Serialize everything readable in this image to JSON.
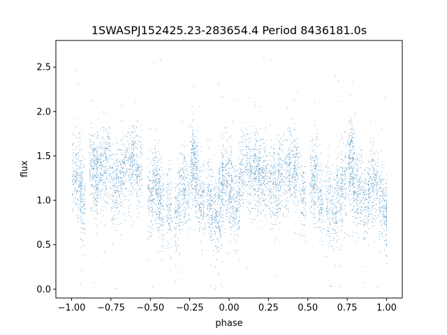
{
  "chart_data": {
    "type": "scatter",
    "title": "1SWASPJ152425.23-283654.4 Period 8436181.0s",
    "xlabel": "phase",
    "ylabel": "flux",
    "xlim": [
      -1.1,
      1.1
    ],
    "ylim": [
      -0.1,
      2.8
    ],
    "xticks": [
      -1.0,
      -0.75,
      -0.5,
      -0.25,
      0.0,
      0.25,
      0.5,
      0.75,
      1.0
    ],
    "xtick_labels": [
      "−1.00",
      "−0.75",
      "−0.50",
      "−0.25",
      "0.00",
      "0.25",
      "0.50",
      "0.75",
      "1.00"
    ],
    "yticks": [
      0.0,
      0.5,
      1.0,
      1.5,
      2.0,
      2.5
    ],
    "ytick_labels": [
      "0.0",
      "0.5",
      "1.0",
      "1.5",
      "2.0",
      "2.5"
    ],
    "grid": false,
    "point_color": "#1f77b4",
    "series": [
      {
        "points_x": [
          -0.98,
          -0.95,
          -0.93,
          -0.87,
          -0.85,
          -0.83,
          -0.8,
          -0.77,
          -0.73,
          -0.7,
          -0.67,
          -0.63,
          -0.6,
          -0.57,
          -0.5,
          -0.47,
          -0.45,
          -0.43,
          -0.38,
          -0.33,
          -0.3,
          -0.27,
          -0.23,
          -0.22,
          -0.2,
          -0.17,
          -0.13,
          -0.1,
          -0.07,
          -0.05,
          -0.03,
          0.0,
          0.02,
          0.05,
          0.08,
          0.12,
          0.15,
          0.18,
          0.2,
          0.23,
          0.27,
          0.3,
          0.33,
          0.37,
          0.4,
          0.43,
          0.47,
          0.53,
          0.55,
          0.58,
          0.63,
          0.67,
          0.7,
          0.73,
          0.77,
          0.78,
          0.8,
          0.83,
          0.87,
          0.9,
          0.93,
          0.97,
          1.0
        ],
        "points_y": [
          1.3,
          1.2,
          0.95,
          1.4,
          1.25,
          1.35,
          1.3,
          1.4,
          1.15,
          1.2,
          1.35,
          1.4,
          1.45,
          1.3,
          1.0,
          1.25,
          1.15,
          0.95,
          0.9,
          0.85,
          1.2,
          1.1,
          1.35,
          1.45,
          1.15,
          1.0,
          1.05,
          0.85,
          0.8,
          1.1,
          1.25,
          1.15,
          1.05,
          0.95,
          1.3,
          1.35,
          1.3,
          1.35,
          1.25,
          1.3,
          1.2,
          1.15,
          1.3,
          1.35,
          1.4,
          1.3,
          1.05,
          1.2,
          1.3,
          1.0,
          0.95,
          0.9,
          1.05,
          1.2,
          1.35,
          1.5,
          1.15,
          1.1,
          1.0,
          1.15,
          1.2,
          1.0,
          0.85
        ]
      }
    ]
  }
}
